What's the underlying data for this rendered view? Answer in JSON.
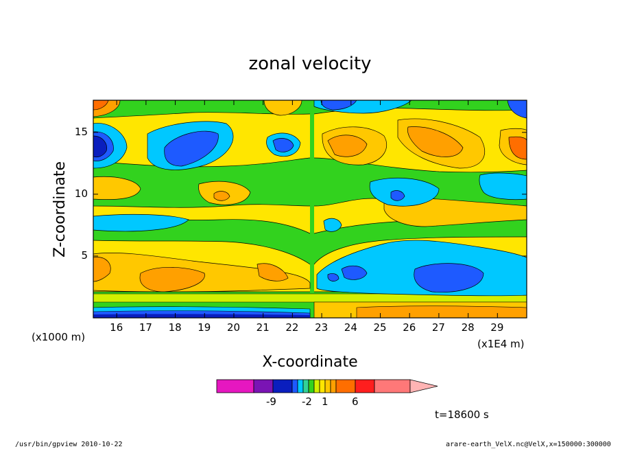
{
  "chart_data": {
    "type": "heatmap",
    "title": "zonal velocity",
    "xlabel": "X-coordinate",
    "ylabel": "Z-coordinate",
    "x_unit_note": "(x1E4 m)",
    "y_unit_note": "(x1000 m)",
    "x_range": [
      15.2,
      30.0
    ],
    "y_range": [
      0.0,
      17.6
    ],
    "x_ticks": [
      16,
      17,
      18,
      19,
      20,
      21,
      22,
      23,
      24,
      25,
      26,
      27,
      28,
      29
    ],
    "y_ticks": [
      5,
      10,
      15
    ],
    "colorbar": {
      "colors": [
        "#e617c0",
        "#7a14b4",
        "#0a1ebe",
        "#1e5aff",
        "#00c8ff",
        "#32d296",
        "#32d21e",
        "#d2f000",
        "#ffe600",
        "#ffc800",
        "#ffa000",
        "#ff6e00",
        "#ff1e1e",
        "#ff7878",
        "#ffb4b4"
      ],
      "labels": [
        "-9",
        "-2",
        "1",
        "6"
      ],
      "extend": "max"
    },
    "time_label": "t=18600 s"
  },
  "footer": {
    "left": "/usr/bin/gpview  2010-10-22",
    "right": "arare-earth_VelX.nc@VelX,x=150000:300000"
  }
}
